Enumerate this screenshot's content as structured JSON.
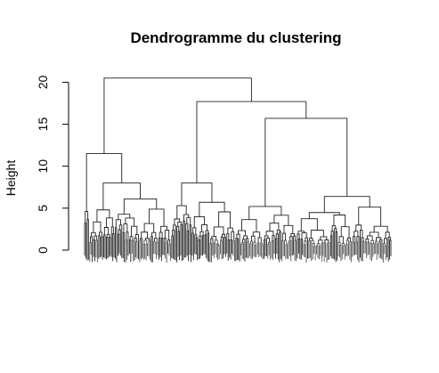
{
  "chart_data": {
    "type": "dendrogram",
    "title": "Dendrogramme du clustering",
    "ylabel": "Height",
    "xlabel": "",
    "ylim": [
      0,
      21
    ],
    "y_ticks": [
      0,
      5,
      10,
      15,
      20
    ],
    "grid": false,
    "legend": "none",
    "leaf_count": 240,
    "leaf_color": "#555555",
    "branch_color": "#222222",
    "merges": [
      {
        "id": "root",
        "height": 20.5,
        "children": [
          "A",
          "B"
        ]
      },
      {
        "id": "A",
        "height": 11.5,
        "children": [
          "A1",
          "A2"
        ]
      },
      {
        "id": "A1",
        "height": 4.6,
        "children": [],
        "leaf_range": [
          0,
          4
        ]
      },
      {
        "id": "A2",
        "height": 8.0,
        "children": [
          "A2a",
          "A2b"
        ]
      },
      {
        "id": "A2a",
        "height": 4.8,
        "children": [],
        "leaf_range": [
          4,
          24
        ]
      },
      {
        "id": "A2b",
        "height": 6.1,
        "children": [],
        "leaf_range": [
          24,
          68
        ]
      },
      {
        "id": "B",
        "height": 17.7,
        "children": [
          "B1",
          "B2"
        ]
      },
      {
        "id": "B1",
        "height": 8.0,
        "children": [
          "B1a",
          "B1b"
        ]
      },
      {
        "id": "B1a",
        "height": 5.3,
        "children": [],
        "leaf_range": [
          68,
          84
        ]
      },
      {
        "id": "B1b",
        "height": 5.7,
        "children": [],
        "leaf_range": [
          84,
          118
        ]
      },
      {
        "id": "B2",
        "height": 15.7,
        "children": [
          "B2a",
          "B2b"
        ]
      },
      {
        "id": "B2a",
        "height": 5.2,
        "children": [],
        "leaf_range": [
          118,
          166
        ]
      },
      {
        "id": "B2b",
        "height": 6.4,
        "children": [],
        "leaf_range": [
          166,
          240
        ]
      }
    ]
  }
}
